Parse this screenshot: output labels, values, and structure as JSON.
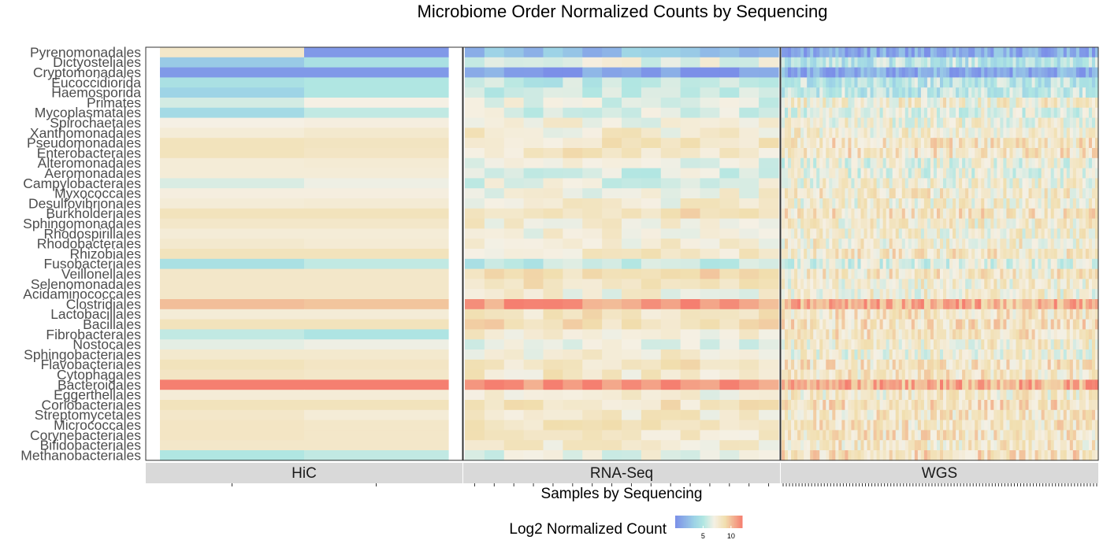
{
  "chart_data": {
    "type": "heatmap",
    "title": "Microbiome Order Normalized Counts by Sequencing",
    "xlabel": "Samples by Sequencing",
    "ylabel": "",
    "legend_title": "Log2 Normalized Count",
    "legend_ticks": [
      "5",
      "10"
    ],
    "legend_tick_values": [
      5,
      10
    ],
    "color_scale": {
      "min": 0,
      "max": 12,
      "stops": [
        {
          "value": 0,
          "color": "#7B8FE8"
        },
        {
          "value": 3.5,
          "color": "#9ED4E6"
        },
        {
          "value": 5,
          "color": "#B0E6E2"
        },
        {
          "value": 7,
          "color": "#F5F0E4"
        },
        {
          "value": 9,
          "color": "#F1DEAE"
        },
        {
          "value": 12,
          "color": "#F57F70"
        }
      ]
    },
    "legend_position": "bottom",
    "rows": [
      "Pyrenomonadales",
      "Dictyosteliales",
      "Cryptomonadales",
      "Eucoccidiorida",
      "Haemosporida",
      "Primates",
      "Mycoplasmatales",
      "Spirochaetales",
      "Xanthomonadales",
      "Pseudomonadales",
      "Enterobacterales",
      "Alteromonadales",
      "Aeromonadales",
      "Campylobacterales",
      "Myxococcales",
      "Desulfovibrionales",
      "Burkholderiales",
      "Sphingomonadales",
      "Rhodospirillales",
      "Rhodobacterales",
      "Rhizobiales",
      "Fusobacteriales",
      "Veillonellales",
      "Selenomonadales",
      "Acidaminococcales",
      "Clostridiales",
      "Lactobacillales",
      "Bacillales",
      "Fibrobacterales",
      "Nostocales",
      "Sphingobacteriales",
      "Flavobacteriales",
      "Cytophagales",
      "Bacteroidales",
      "Eggerthellales",
      "Coriobacteriales",
      "Streptomycetales",
      "Micrococcales",
      "Corynebacteriales",
      "Bifidobacteriales",
      "Methanobacteriales"
    ],
    "panels": [
      {
        "name": "HiC",
        "n_samples": 2,
        "values": [
          [
            8.0,
            0.5
          ],
          [
            3.0,
            4.5
          ],
          [
            0.5,
            0.5
          ],
          [
            4.5,
            5.0
          ],
          [
            3.5,
            5.0
          ],
          [
            6.0,
            7.0
          ],
          [
            4.0,
            5.5
          ],
          [
            7.0,
            7.2
          ],
          [
            7.5,
            7.8
          ],
          [
            8.5,
            8.3
          ],
          [
            8.5,
            8.2
          ],
          [
            7.5,
            7.6
          ],
          [
            7.5,
            7.5
          ],
          [
            6.2,
            6.8
          ],
          [
            7.2,
            7.2
          ],
          [
            7.5,
            7.6
          ],
          [
            8.5,
            8.5
          ],
          [
            8.0,
            8.0
          ],
          [
            7.5,
            7.5
          ],
          [
            7.8,
            7.6
          ],
          [
            8.5,
            8.5
          ],
          [
            4.5,
            5.5
          ],
          [
            8.0,
            8.0
          ],
          [
            8.0,
            8.0
          ],
          [
            8.0,
            8.0
          ],
          [
            10.0,
            9.8
          ],
          [
            7.5,
            7.5
          ],
          [
            8.5,
            8.5
          ],
          [
            5.5,
            4.8
          ],
          [
            6.5,
            6.8
          ],
          [
            7.8,
            7.8
          ],
          [
            8.5,
            8.2
          ],
          [
            8.2,
            8.0
          ],
          [
            12.0,
            12.0
          ],
          [
            7.5,
            7.5
          ],
          [
            8.5,
            8.5
          ],
          [
            8.0,
            7.5
          ],
          [
            8.2,
            8.0
          ],
          [
            8.2,
            8.0
          ],
          [
            8.0,
            8.0
          ],
          [
            5.0,
            5.5
          ]
        ]
      },
      {
        "name": "RNA-Seq",
        "n_samples": 16,
        "row_means": [
          2.5,
          6.5,
          1.0,
          5.5,
          5.8,
          6.5,
          6.2,
          7.2,
          7.6,
          8.2,
          8.0,
          6.6,
          6.2,
          6.4,
          7.2,
          7.4,
          8.3,
          7.6,
          7.4,
          7.4,
          8.0,
          5.5,
          9.0,
          8.5,
          7.2,
          11.0,
          8.2,
          8.7,
          7.4,
          6.6,
          7.4,
          8.3,
          8.0,
          11.6,
          7.4,
          8.3,
          7.8,
          8.0,
          7.8,
          7.4,
          6.6
        ]
      },
      {
        "name": "WGS",
        "n_samples": 100,
        "row_means": [
          1.5,
          5.0,
          1.5,
          5.0,
          5.2,
          7.6,
          6.6,
          7.2,
          7.6,
          8.2,
          8.2,
          6.8,
          6.8,
          7.2,
          7.8,
          7.4,
          8.3,
          7.6,
          7.4,
          7.6,
          8.0,
          6.4,
          8.0,
          7.4,
          7.4,
          10.5,
          8.2,
          8.4,
          8.2,
          7.6,
          7.2,
          8.2,
          8.0,
          10.5,
          7.6,
          8.6,
          8.0,
          8.2,
          8.2,
          8.0,
          8.6
        ]
      }
    ]
  }
}
